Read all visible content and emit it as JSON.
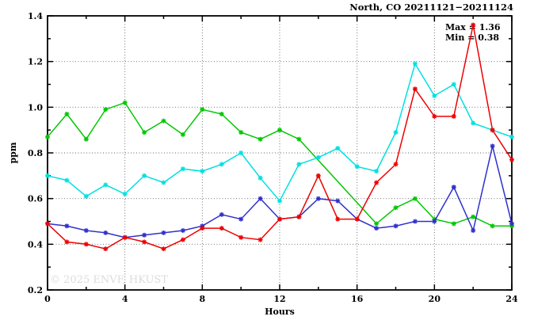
{
  "title": "North, CO 20211121−20211124",
  "watermark": "© 2025 ENVF, HKUST",
  "annotations": {
    "max_label": "Max = 1.36",
    "min_label": "Min = 0.38"
  },
  "chart_data": {
    "type": "line",
    "title": "North, CO 20211121−20211124",
    "xlabel": "Hours",
    "ylabel": "ppm",
    "xlim": [
      0,
      24
    ],
    "ylim": [
      0.2,
      1.4
    ],
    "x_major_ticks": [
      0,
      4,
      8,
      12,
      16,
      20,
      24
    ],
    "x_minor_tick_step": 2,
    "y_major_ticks": [
      0.2,
      0.4,
      0.6,
      0.8,
      1.0,
      1.2,
      1.4
    ],
    "y_minor_tick_step": 0.1,
    "grid": "dotted at major ticks",
    "legend_position": "none",
    "marker": "asterisk",
    "x": [
      0,
      1,
      2,
      3,
      4,
      5,
      6,
      7,
      8,
      9,
      10,
      11,
      12,
      13,
      14,
      15,
      16,
      17,
      18,
      19,
      20,
      21,
      22,
      23,
      24
    ],
    "series": [
      {
        "name": "green",
        "color": "#00c800",
        "values": [
          0.87,
          0.97,
          0.86,
          0.99,
          1.02,
          0.89,
          0.94,
          0.88,
          0.99,
          0.97,
          0.89,
          0.86,
          0.9,
          0.86,
          null,
          null,
          null,
          0.49,
          0.56,
          0.6,
          0.51,
          0.49,
          0.52,
          0.48,
          0.48
        ]
      },
      {
        "name": "cyan",
        "color": "#00e0e0",
        "values": [
          0.7,
          0.68,
          0.61,
          0.66,
          0.62,
          0.7,
          0.67,
          0.73,
          0.72,
          0.75,
          0.8,
          0.69,
          0.59,
          0.75,
          0.78,
          0.82,
          0.74,
          0.72,
          0.89,
          1.19,
          1.05,
          1.1,
          0.93,
          0.9,
          0.87
        ]
      },
      {
        "name": "blue",
        "color": "#3030cc",
        "values": [
          0.49,
          0.48,
          0.46,
          0.45,
          0.43,
          0.44,
          0.45,
          0.46,
          0.48,
          0.53,
          0.51,
          0.6,
          0.51,
          0.52,
          0.6,
          0.59,
          0.51,
          0.47,
          0.48,
          0.5,
          0.5,
          0.65,
          0.46,
          0.83,
          0.49
        ]
      },
      {
        "name": "red",
        "color": "#ee0000",
        "values": [
          0.49,
          0.41,
          0.4,
          0.38,
          0.43,
          0.41,
          0.38,
          0.42,
          0.47,
          0.47,
          0.43,
          0.42,
          0.51,
          0.52,
          0.7,
          0.51,
          0.51,
          0.67,
          0.75,
          1.08,
          0.96,
          0.96,
          1.36,
          0.9,
          0.77
        ]
      }
    ],
    "stats": {
      "max": 1.36,
      "min": 0.38
    }
  }
}
